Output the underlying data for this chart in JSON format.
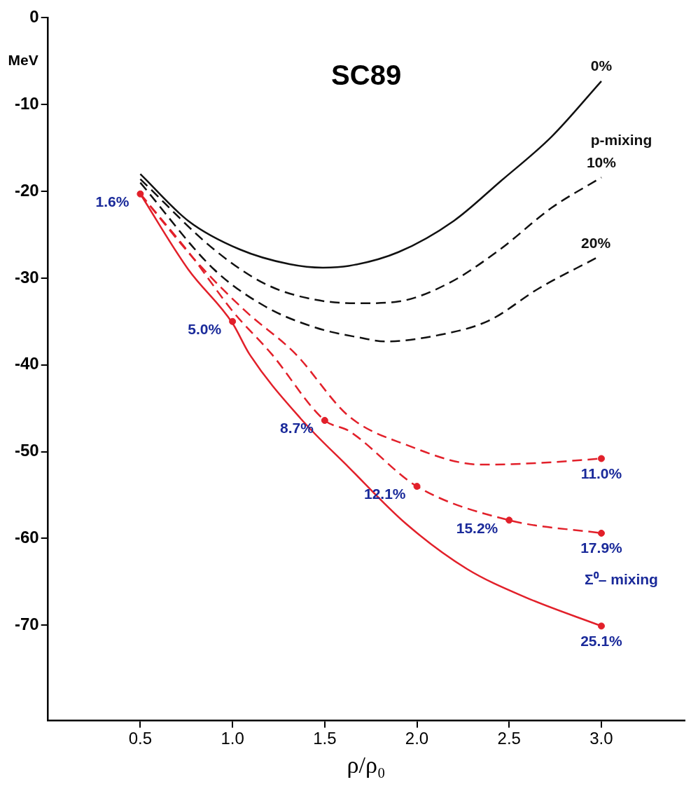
{
  "chart_data": {
    "type": "line",
    "title": "SC89",
    "xlabel": "ρ/ρ₀",
    "ylabel": "MeV",
    "xlim": [
      0,
      3.45
    ],
    "ylim": [
      -81,
      0
    ],
    "xticks": [
      {
        "value": 0.5,
        "label": "0.5"
      },
      {
        "value": 1,
        "label": "1.0"
      },
      {
        "value": 1.5,
        "label": "1.5"
      },
      {
        "value": 2,
        "label": "2.0"
      },
      {
        "value": 2.5,
        "label": "2.5"
      },
      {
        "value": 3,
        "label": "3.0"
      }
    ],
    "yticks": [
      0,
      -10,
      -20,
      -30,
      -40,
      -50,
      -60,
      -70
    ],
    "grid": false,
    "legend": false,
    "series": [
      {
        "name": "0%",
        "type": "line",
        "color": "#111111",
        "line_style": "solid",
        "x": [
          0.5,
          0.76,
          1.04,
          1.31,
          1.49,
          1.63,
          1.9,
          2.2,
          2.45,
          2.73,
          3.0
        ],
        "values": [
          -18,
          -23.4,
          -26.7,
          -28.4,
          -28.8,
          -28.6,
          -27,
          -23.4,
          -18.9,
          -13.7,
          -7.3
        ]
      },
      {
        "name": "10%",
        "type": "line",
        "color": "#111111",
        "line_style": "dashed",
        "x": [
          0.5,
          0.9,
          1.18,
          1.45,
          1.7,
          1.9,
          2.18,
          2.45,
          2.73,
          3.0
        ],
        "values": [
          -18.6,
          -26.7,
          -30.7,
          -32.5,
          -32.9,
          -32.7,
          -30.5,
          -26.7,
          -21.9,
          -18.4
        ]
      },
      {
        "name": "20%",
        "type": "line",
        "color": "#111111",
        "line_style": "dashed",
        "x": [
          0.5,
          0.9,
          1.18,
          1.45,
          1.7,
          1.83,
          2.11,
          2.39,
          2.66,
          2.97
        ],
        "values": [
          -19,
          -29,
          -33.3,
          -35.7,
          -36.9,
          -37.3,
          -36.6,
          -34.9,
          -31.2,
          -27.7
        ]
      },
      {
        "type": "line",
        "color": "#e2202a",
        "line_style": "dashed",
        "x": [
          0.5,
          0.8,
          1.07,
          1.34,
          1.63,
          1.94,
          2.35,
          2.67,
          3.0
        ],
        "values": [
          -20.3,
          -28,
          -33.8,
          -38.7,
          -45.9,
          -49.2,
          -51.5,
          -51.3,
          -50.8
        ]
      },
      {
        "type": "line",
        "color": "#e2202a",
        "line_style": "dashed",
        "x": [
          0.5,
          0.78,
          1.0,
          1.21,
          1.5,
          1.63,
          2.0,
          2.5,
          3.0
        ],
        "values": [
          -20.3,
          -27.5,
          -33.8,
          -38.7,
          -46.4,
          -47.6,
          -54,
          -57.9,
          -59.4
        ]
      },
      {
        "type": "line",
        "color": "#e2202a",
        "line_style": "solid",
        "x": [
          0.5,
          0.76,
          1.0,
          1.09,
          1.37,
          1.63,
          1.94,
          2.27,
          2.59,
          3.0
        ],
        "values": [
          -20.3,
          -29,
          -35.2,
          -38.7,
          -46.2,
          -51.8,
          -58.3,
          -63.5,
          -66.8,
          -70.1
        ]
      },
      {
        "type": "scatter",
        "color": "#e2202a",
        "marker": "circle",
        "x": [
          0.5,
          1.0,
          1.5,
          2.0,
          2.5,
          3.0,
          3.0,
          3.0
        ],
        "values": [
          -20.3,
          -35,
          -46.4,
          -54,
          -57.9,
          -50.8,
          -59.4,
          -70.1
        ]
      }
    ],
    "annotations": [
      "p-mixing",
      "Σ⁰– mixing",
      {
        "text": "1.6%",
        "x": 0.5,
        "y": -20.3
      },
      {
        "text": "5.0%",
        "x": 1.0,
        "y": -35
      },
      {
        "text": "8.7%",
        "x": 1.5,
        "y": -46.4
      },
      {
        "text": "12.1%",
        "x": 2.0,
        "y": -54
      },
      {
        "text": "15.2%",
        "x": 2.5,
        "y": -57.9
      },
      {
        "text": "11.0%",
        "x": 3.0,
        "y": -50.8
      },
      {
        "text": "17.9%",
        "x": 3.0,
        "y": -59.4
      },
      {
        "text": "25.1%",
        "x": 3.0,
        "y": -70.1
      }
    ]
  }
}
